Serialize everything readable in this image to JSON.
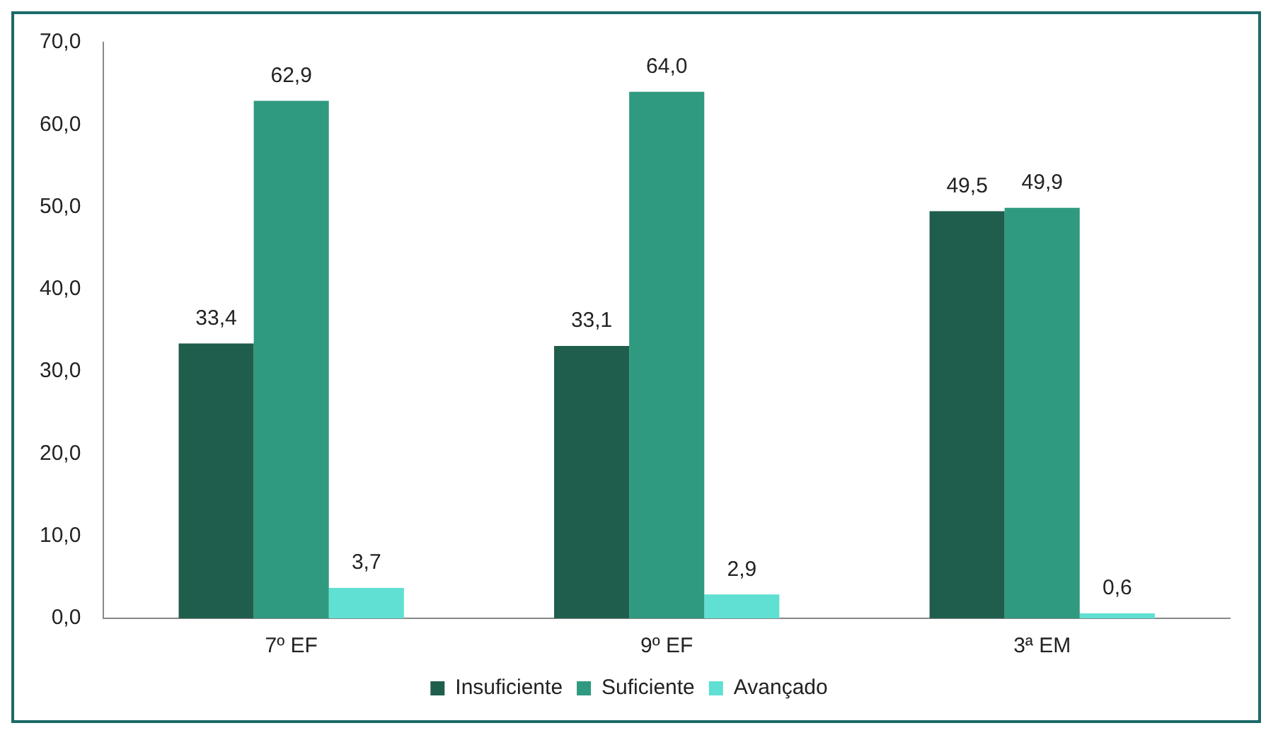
{
  "chart_data": {
    "type": "bar",
    "categories": [
      "7º EF",
      "9º EF",
      "3ª EM"
    ],
    "series": [
      {
        "name": "Insuficiente",
        "color": "#1f5e4c",
        "values": [
          33.4,
          33.1,
          49.5
        ],
        "value_labels": [
          "33,4",
          "33,1",
          "49,5"
        ]
      },
      {
        "name": "Suficiente",
        "color": "#2f9a7f",
        "values": [
          62.9,
          64.0,
          49.9
        ],
        "value_labels": [
          "62,9",
          "64,0",
          "49,9"
        ]
      },
      {
        "name": "Avançado",
        "color": "#5fe0d2",
        "values": [
          3.7,
          2.9,
          0.6
        ],
        "value_labels": [
          "3,7",
          "2,9",
          "0,6"
        ]
      }
    ],
    "ylim": [
      0,
      70
    ],
    "yticks": [
      {
        "value": 0,
        "label": "0,0"
      },
      {
        "value": 10,
        "label": "10,0"
      },
      {
        "value": 20,
        "label": "20,0"
      },
      {
        "value": 30,
        "label": "30,0"
      },
      {
        "value": 40,
        "label": "40,0"
      },
      {
        "value": 50,
        "label": "50,0"
      },
      {
        "value": 60,
        "label": "60,0"
      },
      {
        "value": 70,
        "label": "70,0"
      }
    ],
    "grid": false,
    "legend": "bottom"
  }
}
